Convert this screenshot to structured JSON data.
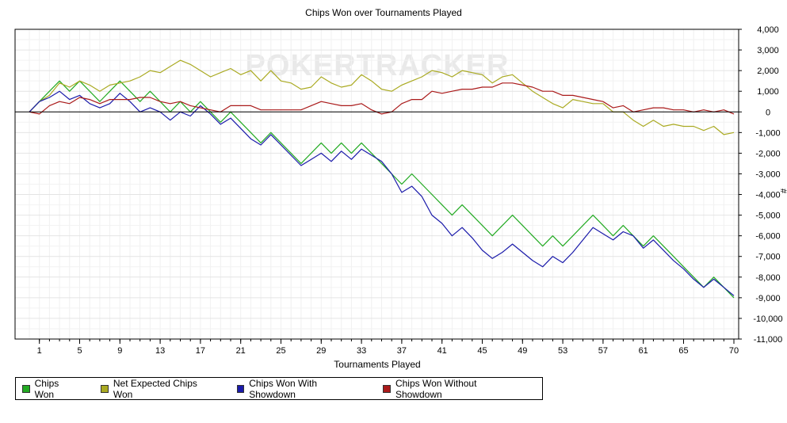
{
  "chart_data": {
    "type": "line",
    "title": "Chips Won over Tournaments Played",
    "xlabel": "Tournaments Played",
    "ylabel": "",
    "y_axis_side": "right",
    "watermark": "POKERTRACKER",
    "xlim": [
      0,
      70
    ],
    "ylim": [
      -11000,
      4000
    ],
    "x_ticks": [
      1,
      5,
      9,
      13,
      17,
      21,
      25,
      29,
      33,
      37,
      41,
      45,
      49,
      53,
      57,
      61,
      65,
      70
    ],
    "y_ticks": [
      4000,
      3000,
      2000,
      1000,
      0,
      -1000,
      -2000,
      -3000,
      -4000,
      -5000,
      -6000,
      -7000,
      -8000,
      -9000,
      -10000,
      -11000
    ],
    "y_tick_labels": [
      "4,000",
      "3,000",
      "2,000",
      "1,000",
      "0",
      "-1,000",
      "-2,000",
      "-3,000",
      "-4,000",
      "-5,000",
      "-6,000",
      "-7,000",
      "-8,000",
      "-9,000",
      "-10,000",
      "-11,000"
    ],
    "grid": true,
    "legend_position": "bottom-left",
    "x": [
      0,
      1,
      2,
      3,
      4,
      5,
      6,
      7,
      8,
      9,
      10,
      11,
      12,
      13,
      14,
      15,
      16,
      17,
      18,
      19,
      20,
      21,
      22,
      23,
      24,
      25,
      26,
      27,
      28,
      29,
      30,
      31,
      32,
      33,
      34,
      35,
      36,
      37,
      38,
      39,
      40,
      41,
      42,
      43,
      44,
      45,
      46,
      47,
      48,
      49,
      50,
      51,
      52,
      53,
      54,
      55,
      56,
      57,
      58,
      59,
      60,
      61,
      62,
      63,
      64,
      65,
      66,
      67,
      68,
      69,
      70
    ],
    "series": [
      {
        "name": "Chips Won",
        "color": "#22aa22",
        "values": [
          0,
          500,
          1000,
          1500,
          1000,
          1500,
          1000,
          500,
          1000,
          1500,
          1000,
          500,
          1000,
          500,
          0,
          500,
          0,
          500,
          0,
          -500,
          0,
          -500,
          -1000,
          -1500,
          -1000,
          -1500,
          -2000,
          -2500,
          -2000,
          -1500,
          -2000,
          -1500,
          -2000,
          -1500,
          -2000,
          -2500,
          -3000,
          -3500,
          -3000,
          -3500,
          -4000,
          -4500,
          -5000,
          -4500,
          -5000,
          -5500,
          -6000,
          -5500,
          -5000,
          -5500,
          -6000,
          -6500,
          -6000,
          -6500,
          -6000,
          -5500,
          -5000,
          -5500,
          -6000,
          -5500,
          -6000,
          -6500,
          -6000,
          -6500,
          -7000,
          -7500,
          -8000,
          -8500,
          -8000,
          -8500,
          -9000
        ]
      },
      {
        "name": "Net Expected Chips Won",
        "color": "#aaaa22",
        "values": [
          0,
          500,
          800,
          1400,
          1200,
          1500,
          1300,
          1000,
          1300,
          1400,
          1500,
          1700,
          2000,
          1900,
          2200,
          2500,
          2300,
          2000,
          1700,
          1900,
          2100,
          1800,
          2000,
          1500,
          2000,
          1500,
          1400,
          1100,
          1200,
          1700,
          1400,
          1200,
          1300,
          1800,
          1500,
          1100,
          1000,
          1300,
          1500,
          1700,
          2000,
          1900,
          1700,
          2000,
          1900,
          1800,
          1400,
          1700,
          1800,
          1400,
          1000,
          700,
          400,
          200,
          600,
          500,
          400,
          400,
          0,
          0,
          -400,
          -700,
          -400,
          -700,
          -600,
          -700,
          -700,
          -900,
          -700,
          -1100,
          -1000
        ]
      },
      {
        "name": "Chips Won With Showdown",
        "color": "#1a1aaa",
        "values": [
          0,
          500,
          700,
          1000,
          600,
          800,
          400,
          200,
          400,
          900,
          500,
          0,
          200,
          0,
          -400,
          0,
          -200,
          300,
          -100,
          -600,
          -300,
          -800,
          -1300,
          -1600,
          -1100,
          -1600,
          -2100,
          -2600,
          -2300,
          -2000,
          -2400,
          -1900,
          -2300,
          -1800,
          -2100,
          -2400,
          -3000,
          -3900,
          -3600,
          -4100,
          -5000,
          -5400,
          -6000,
          -5600,
          -6100,
          -6700,
          -7100,
          -6800,
          -6400,
          -6800,
          -7200,
          -7500,
          -7000,
          -7300,
          -6800,
          -6200,
          -5600,
          -5900,
          -6200,
          -5800,
          -6000,
          -6600,
          -6200,
          -6700,
          -7200,
          -7600,
          -8100,
          -8500,
          -8100,
          -8500,
          -8900
        ]
      },
      {
        "name": "Chips Won Without Showdown",
        "color": "#aa1a1a",
        "values": [
          0,
          -100,
          300,
          500,
          400,
          700,
          600,
          400,
          600,
          600,
          600,
          700,
          700,
          500,
          400,
          500,
          300,
          200,
          100,
          0,
          300,
          300,
          300,
          100,
          100,
          100,
          100,
          100,
          300,
          500,
          400,
          300,
          300,
          400,
          100,
          -100,
          0,
          400,
          600,
          600,
          1000,
          900,
          1000,
          1100,
          1100,
          1200,
          1200,
          1400,
          1400,
          1300,
          1200,
          1000,
          1000,
          800,
          800,
          700,
          600,
          500,
          200,
          300,
          0,
          100,
          200,
          200,
          100,
          100,
          0,
          100,
          0,
          100,
          -100
        ]
      }
    ]
  }
}
